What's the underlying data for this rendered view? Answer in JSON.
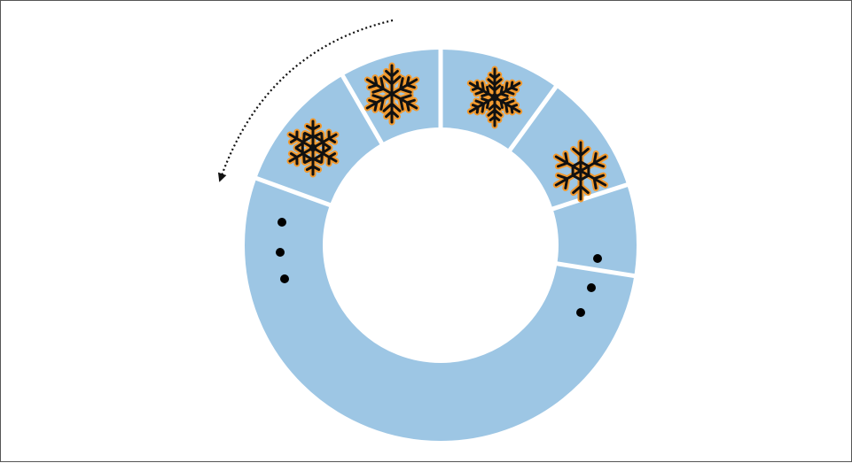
{
  "diagram": {
    "colors": {
      "ring_fill": "#9DC6E4",
      "divider": "#ffffff",
      "icon_fill": "#F39A2E",
      "icon_stroke": "#111111",
      "dots": "#000000",
      "arrow": "#111111"
    },
    "segments": [
      {
        "content": "snowflake",
        "icon": "ornate-snowflake-icon"
      },
      {
        "content": "snowflake",
        "icon": "branched-snowflake-icon"
      },
      {
        "content": "snowflake",
        "icon": "dense-snowflake-icon"
      },
      {
        "content": "snowflake",
        "icon": "hexagon-snowflake-icon"
      },
      {
        "content": "ellipsis",
        "icon": "ellipsis-dots"
      }
    ],
    "arrow_direction": "counter-clockwise"
  }
}
